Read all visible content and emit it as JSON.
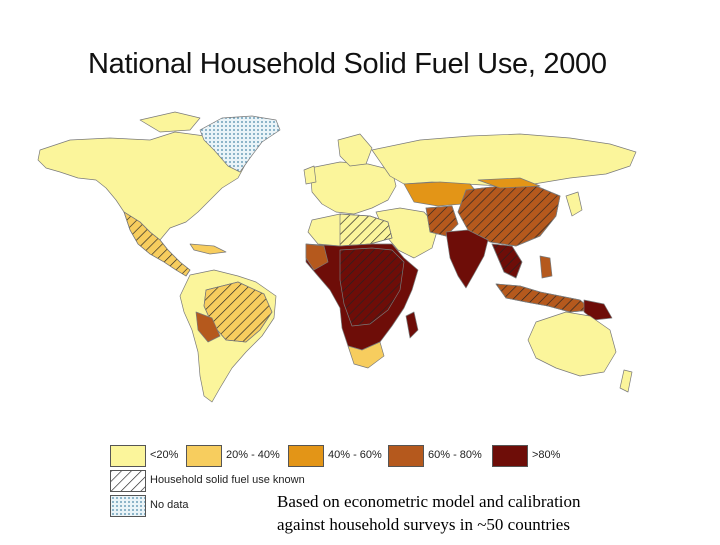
{
  "title": "National Household Solid Fuel Use, 2000",
  "colors": {
    "lt20": "#fbf59b",
    "p20_40": "#f7cd5e",
    "p40_60": "#e39517",
    "p60_80": "#b5591d",
    "gt80": "#6e0d08",
    "no_data": "#cfe6ef",
    "border": "#7a7a7a",
    "ocean": "#ffffff"
  },
  "legend": {
    "items": [
      {
        "label": "<20%",
        "color": "#fbf59b"
      },
      {
        "label": "20% - 40%",
        "color": "#f7cd5e"
      },
      {
        "label": "40% - 60%",
        "color": "#e39517"
      },
      {
        "label": "60% - 80%",
        "color": "#b5591d"
      },
      {
        "label": ">80%",
        "color": "#6e0d08"
      }
    ],
    "hatch_label": "Household solid fuel use known",
    "no_data_label": "No data"
  },
  "note": {
    "line1": "Based on econometric model and calibration",
    "line2": "against household surveys in ~50 countries"
  },
  "regions": {
    "north_america": "<20%",
    "greenland": "No data",
    "central_america": "20% - 40%",
    "south_america": "<20%",
    "brazil": "20% - 40%",
    "europe": "<20%",
    "russia": "<20%",
    "north_africa": "<20%",
    "sub_saharan_africa": ">80%",
    "south_africa": "20% - 40%",
    "middle_east": "<20%",
    "central_asia": "40% - 60%",
    "china": "60% - 80%",
    "india": ">80%",
    "southeast_asia": "60% - 80%",
    "australia": "<20%"
  }
}
